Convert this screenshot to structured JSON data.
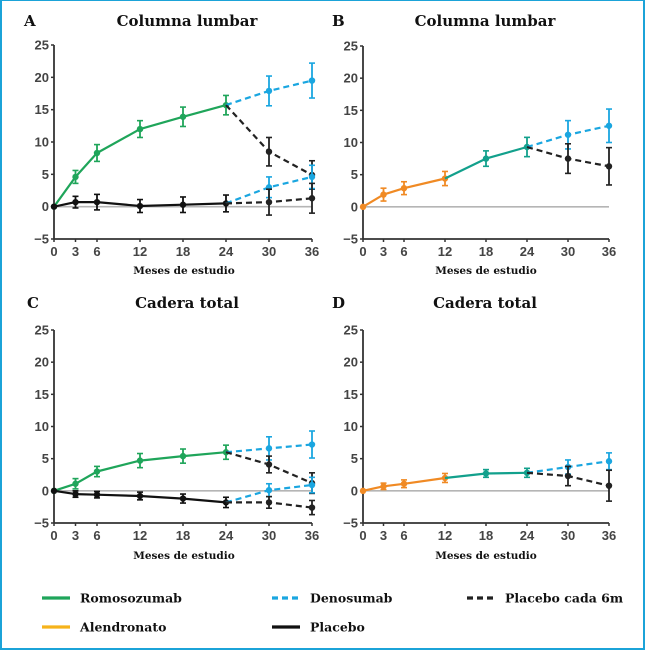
{
  "colors": {
    "frame": "#1ba3d8",
    "romosozumab": "#1fa55a",
    "alendronato": "#f08a24",
    "alendronato_legend": "#f6b31b",
    "romosozumab_after_alendronato": "#12a08c",
    "denosumab": "#1aa6e0",
    "placebo": "#111111",
    "placebo_6m": "#222222",
    "zero_line": "#b5b5b5",
    "axis": "#333333"
  },
  "chart_data": [
    {
      "type": "line",
      "panel": "A",
      "title": "Columna lumbar",
      "xlabel": "Meses de estudio",
      "ylabel": "",
      "xticks": [
        0,
        3,
        6,
        12,
        18,
        24,
        30,
        36
      ],
      "yticks": [
        -5,
        0,
        5,
        10,
        15,
        20,
        25
      ],
      "xlim": [
        0,
        36
      ],
      "ylim": [
        -5,
        25
      ],
      "series": [
        {
          "name": "Romosozumab",
          "color_key": "romosozumab",
          "dashed": false,
          "x": [
            0,
            3,
            6,
            12,
            18,
            24
          ],
          "values": [
            0,
            4.6,
            8.3,
            12.0,
            13.9,
            15.7
          ],
          "err": [
            0,
            1.0,
            1.3,
            1.3,
            1.5,
            1.5
          ]
        },
        {
          "name": "Denosumab (tras romosozumab)",
          "color_key": "denosumab",
          "dashed": true,
          "x": [
            24,
            30,
            36
          ],
          "values": [
            15.7,
            17.9,
            19.5
          ],
          "err": [
            0,
            2.3,
            2.7
          ]
        },
        {
          "name": "Placebo cada 6m (tras romosozumab)",
          "color_key": "placebo_6m",
          "dashed": true,
          "x": [
            24,
            30,
            36
          ],
          "values": [
            15.7,
            8.5,
            4.9
          ],
          "err": [
            0,
            2.2,
            2.2
          ]
        },
        {
          "name": "Placebo",
          "color_key": "placebo",
          "dashed": false,
          "x": [
            0,
            3,
            6,
            12,
            18,
            24
          ],
          "values": [
            0,
            0.7,
            0.7,
            0.1,
            0.3,
            0.5
          ],
          "err": [
            0,
            0.9,
            1.2,
            1.0,
            1.2,
            1.3
          ]
        },
        {
          "name": "Denosumab (tras placebo)",
          "color_key": "denosumab",
          "dashed": true,
          "x": [
            24,
            30,
            36
          ],
          "values": [
            0.5,
            3.0,
            4.6
          ],
          "err": [
            0,
            1.6,
            1.8
          ]
        },
        {
          "name": "Placebo cada 6m (tras placebo)",
          "color_key": "placebo_6m",
          "dashed": true,
          "x": [
            24,
            30,
            36
          ],
          "values": [
            0.5,
            0.7,
            1.3
          ],
          "err": [
            0,
            2.0,
            2.3
          ]
        }
      ]
    },
    {
      "type": "line",
      "panel": "B",
      "title": "Columna lumbar",
      "xlabel": "Meses de estudio",
      "ylabel": "",
      "xticks": [
        0,
        3,
        6,
        12,
        18,
        24,
        30,
        36
      ],
      "yticks": [
        -5,
        0,
        5,
        10,
        15,
        20,
        25
      ],
      "xlim": [
        0,
        36
      ],
      "ylim": [
        -5,
        25
      ],
      "series": [
        {
          "name": "Alendronato",
          "color_key": "alendronato",
          "dashed": false,
          "x": [
            0,
            3,
            6,
            12
          ],
          "values": [
            0,
            1.9,
            2.9,
            4.4
          ],
          "err": [
            0,
            1.0,
            1.0,
            1.1
          ]
        },
        {
          "name": "Romosozumab (tras alendronato)",
          "color_key": "romosozumab_after_alendronato",
          "dashed": false,
          "x": [
            12,
            18,
            24
          ],
          "values": [
            4.4,
            7.5,
            9.3
          ],
          "err": [
            0,
            1.2,
            1.5
          ]
        },
        {
          "name": "Denosumab",
          "color_key": "denosumab",
          "dashed": true,
          "x": [
            24,
            30,
            36
          ],
          "values": [
            9.3,
            11.2,
            12.6
          ],
          "err": [
            0,
            2.2,
            2.6
          ]
        },
        {
          "name": "Placebo cada 6m",
          "color_key": "placebo_6m",
          "dashed": true,
          "x": [
            24,
            30,
            36
          ],
          "values": [
            9.3,
            7.5,
            6.3
          ],
          "err": [
            0,
            2.3,
            2.9
          ]
        }
      ]
    },
    {
      "type": "line",
      "panel": "C",
      "title": "Cadera total",
      "xlabel": "Meses de estudio",
      "ylabel": "",
      "xticks": [
        0,
        3,
        6,
        12,
        18,
        24,
        30,
        36
      ],
      "yticks": [
        -5,
        0,
        5,
        10,
        15,
        20,
        25
      ],
      "xlim": [
        0,
        36
      ],
      "ylim": [
        -5,
        25
      ],
      "series": [
        {
          "name": "Romosozumab",
          "color_key": "romosozumab",
          "dashed": false,
          "x": [
            0,
            3,
            6,
            12,
            18,
            24
          ],
          "values": [
            0,
            1.1,
            3.0,
            4.7,
            5.4,
            6.0
          ],
          "err": [
            0,
            0.8,
            0.8,
            1.1,
            1.1,
            1.1
          ]
        },
        {
          "name": "Denosumab (tras romosozumab)",
          "color_key": "denosumab",
          "dashed": true,
          "x": [
            24,
            30,
            36
          ],
          "values": [
            6.0,
            6.6,
            7.2
          ],
          "err": [
            0,
            1.8,
            2.1
          ]
        },
        {
          "name": "Placebo cada 6m (tras romosozumab)",
          "color_key": "placebo_6m",
          "dashed": true,
          "x": [
            24,
            30,
            36
          ],
          "values": [
            6.0,
            4.1,
            1.2
          ],
          "err": [
            0,
            1.3,
            1.6
          ]
        },
        {
          "name": "Placebo",
          "color_key": "placebo",
          "dashed": false,
          "x": [
            0,
            3,
            6,
            12,
            18,
            24
          ],
          "values": [
            0,
            -0.5,
            -0.6,
            -0.8,
            -1.2,
            -1.8
          ],
          "err": [
            0,
            0.5,
            0.5,
            0.6,
            0.7,
            0.8
          ]
        },
        {
          "name": "Denosumab (tras placebo)",
          "color_key": "denosumab",
          "dashed": true,
          "x": [
            24,
            30,
            36
          ],
          "values": [
            -1.8,
            0.1,
            0.9
          ],
          "err": [
            0,
            1.0,
            1.2
          ]
        },
        {
          "name": "Placebo cada 6m (tras placebo)",
          "color_key": "placebo_6m",
          "dashed": true,
          "x": [
            24,
            30,
            36
          ],
          "values": [
            -1.8,
            -1.8,
            -2.6
          ],
          "err": [
            0,
            0.9,
            1.1
          ]
        }
      ]
    },
    {
      "type": "line",
      "panel": "D",
      "title": "Cadera total",
      "xlabel": "Meses de estudio",
      "ylabel": "",
      "xticks": [
        0,
        3,
        6,
        12,
        18,
        24,
        30,
        36
      ],
      "yticks": [
        -5,
        0,
        5,
        10,
        15,
        20,
        25
      ],
      "xlim": [
        0,
        36
      ],
      "ylim": [
        -5,
        25
      ],
      "series": [
        {
          "name": "Alendronato",
          "color_key": "alendronato",
          "dashed": false,
          "x": [
            0,
            3,
            6,
            12
          ],
          "values": [
            0,
            0.7,
            1.1,
            2.0
          ],
          "err": [
            0,
            0.5,
            0.6,
            0.7
          ]
        },
        {
          "name": "Romosozumab (tras alendronato)",
          "color_key": "romosozumab_after_alendronato",
          "dashed": false,
          "x": [
            12,
            18,
            24
          ],
          "values": [
            2.0,
            2.7,
            2.8
          ],
          "err": [
            0,
            0.6,
            0.7
          ]
        },
        {
          "name": "Denosumab",
          "color_key": "denosumab",
          "dashed": true,
          "x": [
            24,
            30,
            36
          ],
          "values": [
            2.8,
            3.7,
            4.6
          ],
          "err": [
            0,
            1.1,
            1.3
          ]
        },
        {
          "name": "Placebo cada 6m",
          "color_key": "placebo_6m",
          "dashed": true,
          "x": [
            24,
            30,
            36
          ],
          "values": [
            2.8,
            2.3,
            0.8
          ],
          "err": [
            0,
            1.5,
            2.4
          ]
        }
      ]
    }
  ],
  "legend": {
    "placement": "bottom",
    "items": [
      {
        "label": "Romosozumab",
        "color_key": "romosozumab",
        "dashed": false
      },
      {
        "label": "Denosumab",
        "color_key": "denosumab",
        "dashed": true
      },
      {
        "label": "Placebo cada 6m",
        "color_key": "placebo_6m",
        "dashed": true
      },
      {
        "label": "Alendronato",
        "color_key": "alendronato_legend",
        "dashed": false
      },
      {
        "label": "Placebo",
        "color_key": "placebo",
        "dashed": false
      }
    ]
  }
}
